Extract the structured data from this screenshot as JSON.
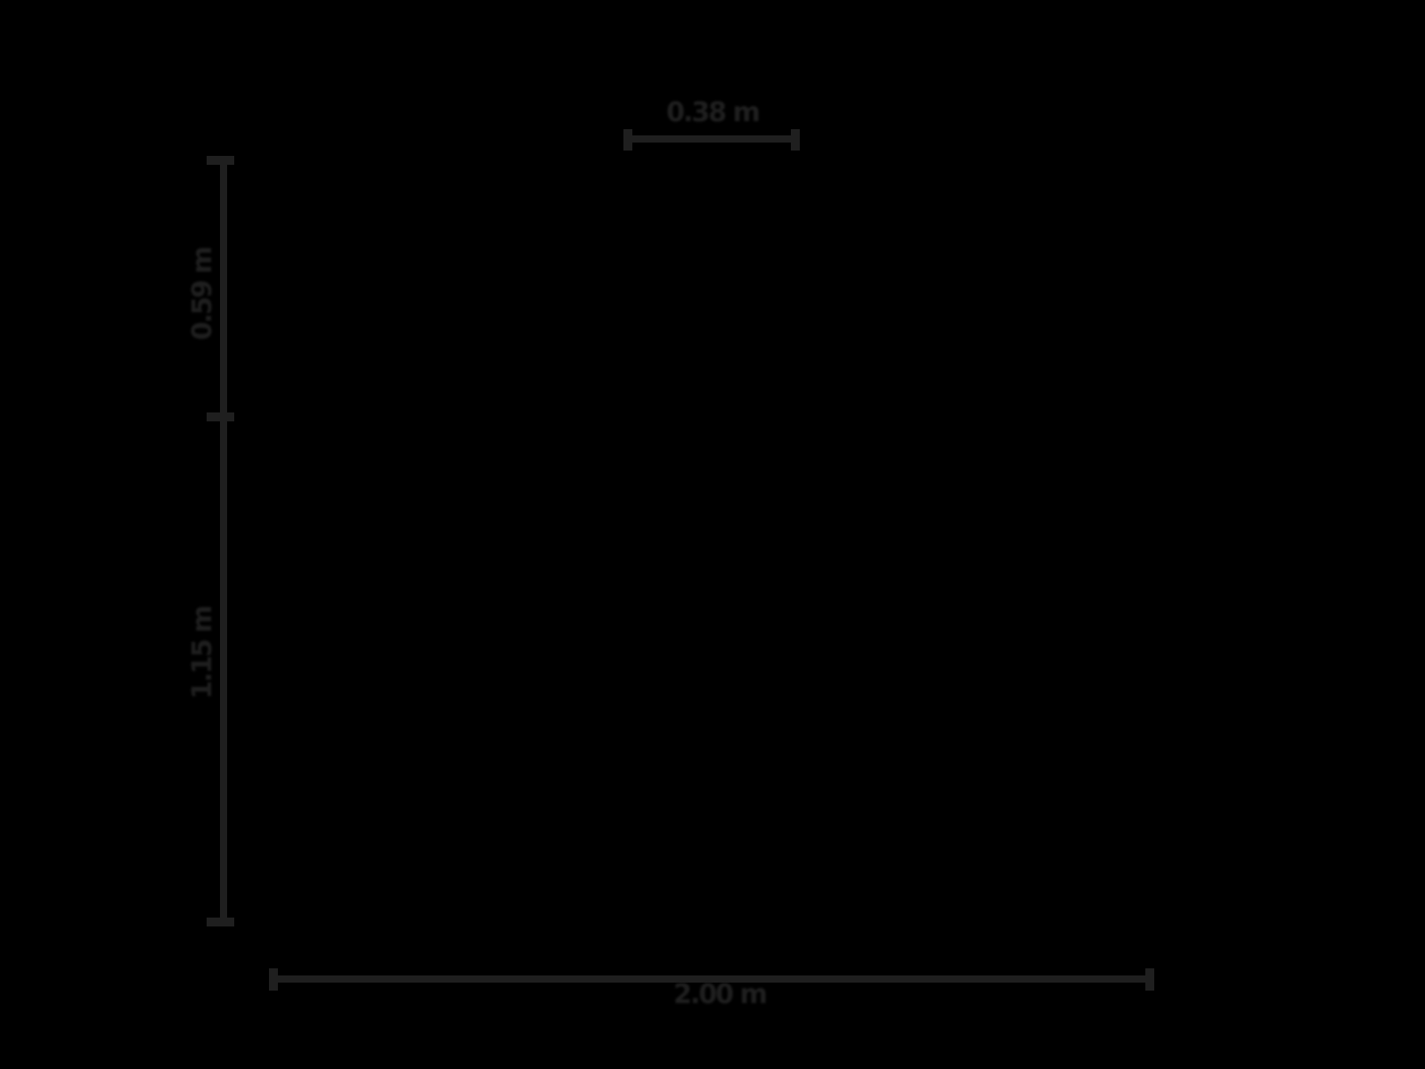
{
  "diagram": {
    "type": "dimension-annotation-figure",
    "background_color": "#000000",
    "line_color": "#1f1f1f",
    "unit": "m",
    "dimensions": {
      "top": {
        "label": "0.38 m",
        "orientation": "horizontal"
      },
      "left_upper": {
        "label": "0.59 m",
        "orientation": "vertical"
      },
      "left_lower": {
        "label": "1.15 m",
        "orientation": "vertical"
      },
      "bottom": {
        "label": "2.00 m",
        "orientation": "horizontal"
      }
    }
  }
}
